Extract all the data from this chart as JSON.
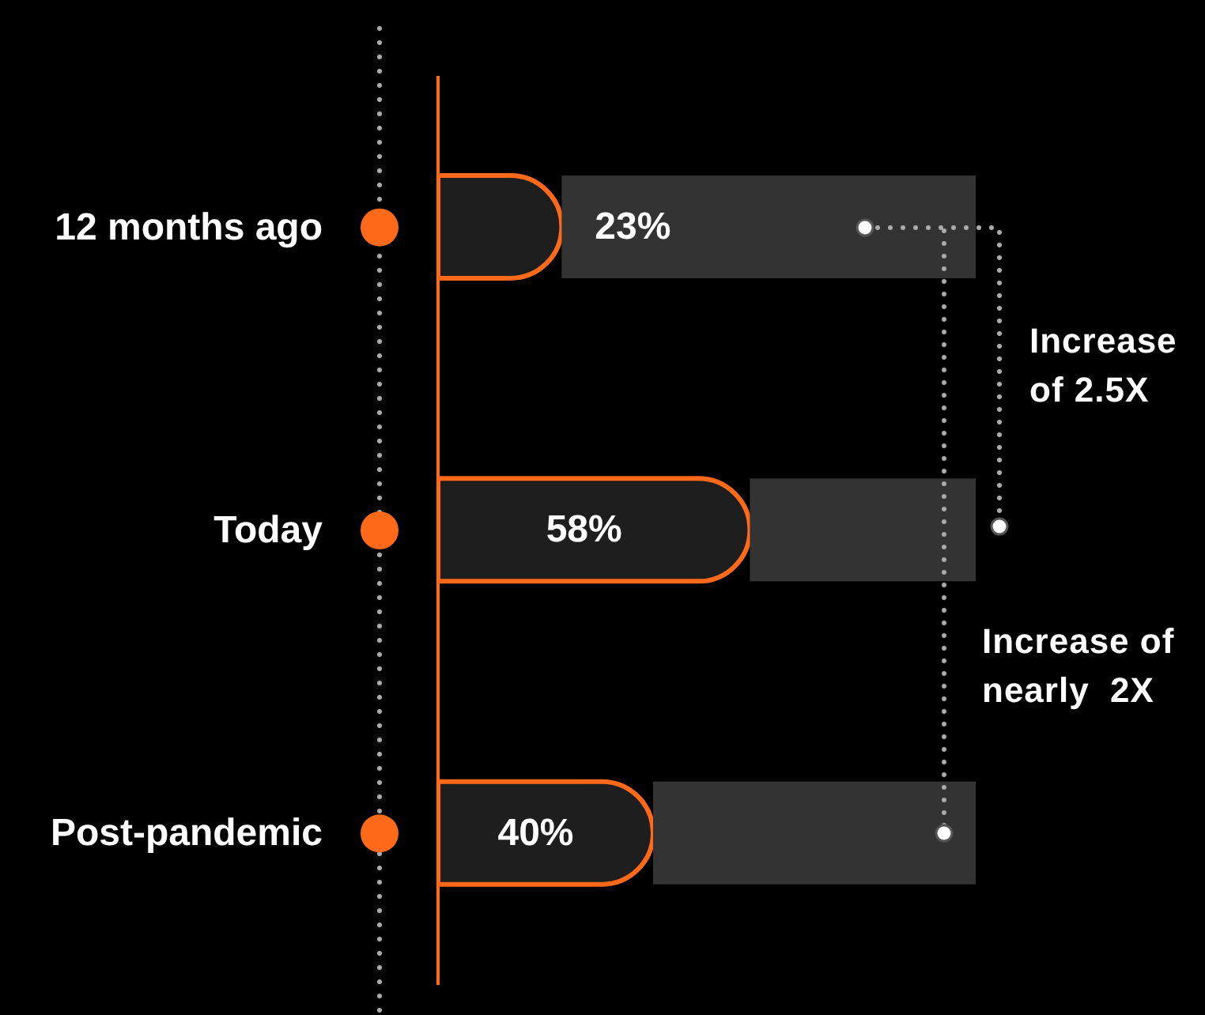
{
  "chart_data": {
    "type": "bar",
    "orientation": "horizontal",
    "stacked": true,
    "categories": [
      "12 months ago",
      "Today",
      "Post-pandemic"
    ],
    "series": [
      {
        "color": "#1e1e1e",
        "values": [
          23,
          58,
          40
        ],
        "value_labels": [
          "23%",
          "58%",
          "40%"
        ]
      },
      {
        "color": "#333333",
        "values": [
          77,
          42,
          60
        ]
      }
    ],
    "xlim": [
      0,
      100
    ],
    "tick_labels": "y",
    "grid": false,
    "legend": false,
    "annotations": [
      "Increase of 2.5X",
      "Increase of nearly  2X"
    ]
  }
}
